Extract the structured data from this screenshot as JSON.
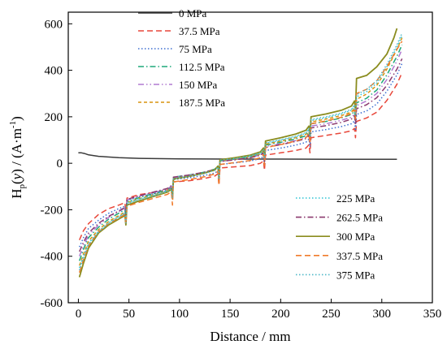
{
  "chart_data": {
    "type": "line",
    "xlabel": "Distance / mm",
    "ylabel_parts": [
      "H",
      "p",
      "(",
      "y",
      ") / (A·m",
      "-1",
      ")"
    ],
    "xlim": [
      -10,
      350
    ],
    "ylim": [
      -600,
      650
    ],
    "xticks": [
      0,
      50,
      100,
      150,
      200,
      250,
      300,
      350
    ],
    "yticks": [
      -600,
      -400,
      -200,
      0,
      200,
      400,
      600
    ],
    "xtick_labels": [
      "0",
      "50",
      "100",
      "150",
      "200",
      "250",
      "300",
      "350"
    ],
    "ytick_labels": [
      "-600",
      "-400",
      "-200",
      "0",
      "200",
      "400",
      "600"
    ],
    "legend_groups": [
      {
        "position": "top-left",
        "series": [
          0,
          1,
          2,
          3,
          4,
          5
        ]
      },
      {
        "position": "bottom-right",
        "series": [
          6,
          7,
          8,
          9,
          10
        ]
      }
    ],
    "series": [
      {
        "name": "0 MPa",
        "color": "#3a3a3a",
        "dash": "solid",
        "x": [
          0,
          3,
          6,
          10,
          20,
          40,
          60,
          100,
          150,
          200,
          250,
          300,
          315
        ],
        "y": [
          45,
          45,
          42,
          36,
          30,
          24,
          21,
          19,
          18,
          18,
          17,
          17,
          17
        ]
      },
      {
        "name": "37.5 MPa",
        "color": "#e8473a",
        "dash": "dashed",
        "x": [
          1,
          5,
          10,
          20,
          30,
          40,
          46,
          47,
          48,
          60,
          75,
          88,
          92,
          93,
          94,
          110,
          125,
          135,
          138,
          139,
          140,
          155,
          170,
          180,
          183,
          184,
          185,
          200,
          215,
          225,
          228,
          229,
          230,
          245,
          260,
          270,
          273,
          274,
          275,
          285,
          295,
          305,
          315,
          320
        ],
        "y": [
          -330,
          -290,
          -260,
          -220,
          -195,
          -180,
          -170,
          -210,
          -150,
          -135,
          -125,
          -115,
          -105,
          -145,
          -80,
          -75,
          -65,
          -55,
          -45,
          -95,
          -20,
          -15,
          -10,
          0,
          10,
          -30,
          35,
          45,
          55,
          65,
          80,
          45,
          110,
          120,
          130,
          140,
          150,
          110,
          180,
          195,
          220,
          270,
          340,
          390
        ]
      },
      {
        "name": "75 MPa",
        "color": "#3d6fd1",
        "dash": "dotted",
        "x": [
          1,
          5,
          10,
          20,
          30,
          40,
          46,
          47,
          48,
          60,
          75,
          88,
          92,
          93,
          94,
          110,
          125,
          135,
          138,
          139,
          140,
          155,
          170,
          180,
          183,
          184,
          185,
          200,
          215,
          225,
          228,
          229,
          230,
          245,
          260,
          270,
          273,
          274,
          275,
          285,
          295,
          305,
          315,
          320
        ],
        "y": [
          -360,
          -320,
          -280,
          -245,
          -215,
          -195,
          -185,
          -225,
          -160,
          -145,
          -130,
          -118,
          -108,
          -148,
          -70,
          -62,
          -52,
          -42,
          -32,
          -82,
          -5,
          2,
          10,
          20,
          30,
          -10,
          55,
          65,
          78,
          90,
          105,
          70,
          135,
          145,
          158,
          170,
          182,
          140,
          210,
          225,
          255,
          310,
          380,
          430
        ]
      },
      {
        "name": "112.5 MPa",
        "color": "#1fa87a",
        "dash": "dashdot",
        "x": [
          1,
          5,
          10,
          20,
          30,
          40,
          46,
          47,
          48,
          60,
          75,
          88,
          92,
          93,
          94,
          110,
          125,
          135,
          138,
          139,
          140,
          155,
          170,
          180,
          183,
          184,
          185,
          200,
          215,
          225,
          228,
          229,
          230,
          245,
          260,
          270,
          273,
          274,
          275,
          285,
          295,
          305,
          315,
          320
        ],
        "y": [
          -420,
          -370,
          -320,
          -275,
          -240,
          -215,
          -200,
          -240,
          -165,
          -148,
          -130,
          -112,
          -100,
          -140,
          -60,
          -50,
          -38,
          -25,
          -12,
          -62,
          10,
          18,
          28,
          40,
          52,
          12,
          78,
          90,
          105,
          118,
          135,
          100,
          170,
          180,
          195,
          210,
          225,
          185,
          260,
          280,
          315,
          380,
          460,
          510
        ]
      },
      {
        "name": "150 MPa",
        "color": "#b07ad0",
        "dash": "dashdotdot",
        "x": [
          1,
          5,
          10,
          20,
          30,
          40,
          46,
          47,
          48,
          60,
          75,
          88,
          92,
          93,
          94,
          110,
          125,
          135,
          138,
          139,
          140,
          155,
          170,
          180,
          183,
          184,
          185,
          200,
          215,
          225,
          228,
          229,
          230,
          245,
          260,
          270,
          273,
          274,
          275,
          285,
          295,
          305,
          315,
          320
        ],
        "y": [
          -400,
          -355,
          -310,
          -265,
          -232,
          -208,
          -193,
          -233,
          -158,
          -142,
          -125,
          -110,
          -98,
          -138,
          -62,
          -52,
          -40,
          -28,
          -15,
          -65,
          8,
          15,
          25,
          36,
          48,
          8,
          72,
          84,
          98,
          110,
          126,
          90,
          160,
          170,
          185,
          198,
          212,
          172,
          248,
          268,
          300,
          360,
          440,
          490
        ]
      },
      {
        "name": "187.5 MPa",
        "color": "#d9930f",
        "dash": "shortdash",
        "x": [
          1,
          5,
          10,
          20,
          30,
          40,
          46,
          47,
          48,
          60,
          75,
          88,
          92,
          93,
          94,
          110,
          125,
          135,
          138,
          139,
          140,
          155,
          170,
          180,
          183,
          184,
          185,
          200,
          215,
          225,
          228,
          229,
          230,
          245,
          260,
          270,
          273,
          274,
          275,
          285,
          295,
          305,
          315,
          320
        ],
        "y": [
          -440,
          -390,
          -335,
          -285,
          -250,
          -225,
          -210,
          -250,
          -170,
          -152,
          -135,
          -118,
          -106,
          -146,
          -66,
          -55,
          -42,
          -30,
          -16,
          -66,
          10,
          18,
          28,
          40,
          55,
          15,
          82,
          95,
          110,
          125,
          142,
          105,
          178,
          190,
          205,
          220,
          238,
          198,
          275,
          298,
          335,
          405,
          490,
          540
        ]
      },
      {
        "name": "225 MPa",
        "color": "#2bc4d4",
        "dash": "dotted",
        "x": [
          1,
          5,
          10,
          20,
          30,
          40,
          46,
          47,
          48,
          60,
          75,
          88,
          92,
          93,
          94,
          110,
          125,
          135,
          138,
          139,
          140,
          155,
          170,
          180,
          183,
          184,
          185,
          200,
          215,
          225,
          228,
          229,
          230,
          245,
          260,
          270,
          273,
          274,
          275,
          285,
          295,
          305,
          315,
          320
        ],
        "y": [
          -450,
          -400,
          -345,
          -292,
          -255,
          -230,
          -214,
          -254,
          -172,
          -154,
          -136,
          -119,
          -107,
          -147,
          -66,
          -55,
          -42,
          -29,
          -15,
          -65,
          12,
          20,
          30,
          43,
          58,
          18,
          86,
          99,
          114,
          129,
          147,
          110,
          184,
          196,
          212,
          228,
          246,
          206,
          285,
          308,
          345,
          415,
          500,
          550
        ]
      },
      {
        "name": "262.5 MPa",
        "color": "#8b3a6e",
        "dash": "dashdot",
        "x": [
          1,
          5,
          10,
          20,
          30,
          40,
          46,
          47,
          48,
          60,
          75,
          88,
          92,
          93,
          94,
          110,
          125,
          135,
          138,
          139,
          140,
          155,
          170,
          180,
          183,
          184,
          185,
          200,
          215,
          225,
          228,
          229,
          230,
          245,
          260,
          270,
          273,
          274,
          275,
          285,
          295,
          305,
          315,
          320
        ],
        "y": [
          -380,
          -340,
          -300,
          -258,
          -228,
          -205,
          -190,
          -230,
          -155,
          -140,
          -123,
          -108,
          -96,
          -136,
          -60,
          -50,
          -38,
          -26,
          -13,
          -63,
          8,
          15,
          24,
          34,
          45,
          5,
          68,
          80,
          94,
          106,
          120,
          85,
          152,
          162,
          176,
          190,
          204,
          164,
          235,
          252,
          282,
          335,
          405,
          450
        ]
      },
      {
        "name": "300 MPa",
        "color": "#8a8c1e",
        "dash": "solid",
        "x": [
          1,
          5,
          10,
          20,
          30,
          40,
          46,
          47,
          48,
          60,
          75,
          88,
          92,
          93,
          94,
          110,
          125,
          135,
          138,
          139,
          140,
          155,
          170,
          180,
          183,
          184,
          185,
          200,
          215,
          225,
          228,
          229,
          230,
          245,
          260,
          270,
          273,
          274,
          275,
          285,
          295,
          305,
          312,
          315
        ],
        "y": [
          -490,
          -430,
          -365,
          -300,
          -265,
          -240,
          -225,
          -265,
          -180,
          -162,
          -142,
          -124,
          -112,
          -152,
          -68,
          -56,
          -42,
          -28,
          -12,
          -62,
          15,
          24,
          35,
          49,
          66,
          26,
          96,
          110,
          126,
          142,
          160,
          125,
          200,
          212,
          228,
          246,
          268,
          228,
          365,
          378,
          415,
          470,
          540,
          580
        ]
      },
      {
        "name": "337.5 MPa",
        "color": "#f07a2a",
        "dash": "dashed",
        "x": [
          1,
          5,
          10,
          20,
          30,
          40,
          46,
          47,
          48,
          60,
          75,
          88,
          92,
          93,
          94,
          110,
          125,
          135,
          138,
          139,
          140,
          155,
          170,
          180,
          183,
          184,
          185,
          200,
          215,
          225,
          228,
          229,
          230,
          245,
          260,
          270,
          273,
          274,
          275,
          285,
          295,
          305,
          315,
          320
        ],
        "y": [
          -470,
          -415,
          -355,
          -295,
          -260,
          -235,
          -220,
          -260,
          -185,
          -168,
          -150,
          -134,
          -122,
          -180,
          -80,
          -70,
          -58,
          -46,
          -34,
          -94,
          -5,
          3,
          12,
          24,
          38,
          -10,
          68,
          80,
          96,
          110,
          128,
          85,
          170,
          182,
          198,
          214,
          232,
          190,
          300,
          318,
          355,
          415,
          490,
          525
        ]
      },
      {
        "name": "375 MPa",
        "color": "#4fb8c8",
        "dash": "dotted",
        "x": [
          1,
          5,
          10,
          20,
          30,
          40,
          46,
          47,
          48,
          60,
          75,
          88,
          92,
          93,
          94,
          110,
          125,
          135,
          138,
          139,
          140,
          155,
          170,
          180,
          183,
          184,
          185,
          200,
          215,
          225,
          228,
          229,
          230,
          245,
          260,
          270,
          273,
          274,
          275,
          285,
          295,
          305,
          315,
          320
        ],
        "y": [
          -460,
          -408,
          -350,
          -296,
          -258,
          -232,
          -216,
          -256,
          -175,
          -157,
          -139,
          -121,
          -109,
          -149,
          -67,
          -56,
          -43,
          -30,
          -15,
          -65,
          13,
          21,
          32,
          45,
          60,
          20,
          88,
          101,
          117,
          132,
          150,
          113,
          188,
          200,
          216,
          232,
          252,
          212,
          295,
          318,
          355,
          425,
          510,
          560
        ]
      }
    ]
  }
}
